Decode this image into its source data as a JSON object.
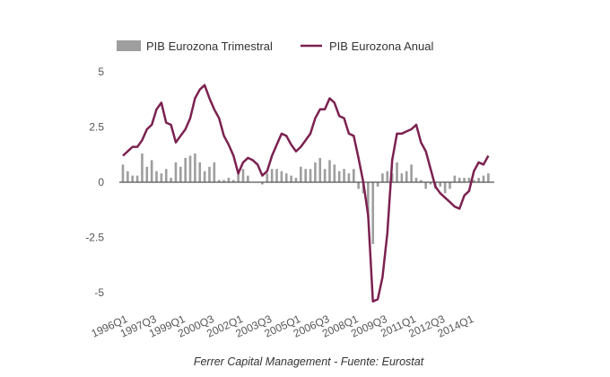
{
  "chart_data": {
    "type": "bar+line",
    "title": "",
    "xlabel": "",
    "ylabel": "",
    "ylim": [
      -5.5,
      5
    ],
    "yticks": [
      5,
      2.5,
      0,
      -2.5,
      -5
    ],
    "ytick_labels": [
      "5",
      "2.5",
      "0",
      "-2.5",
      "-5"
    ],
    "grid": false,
    "legend_position": "top",
    "x_start": "1996Q1",
    "x_end": "2015Q1",
    "xtick_labels": [
      "1996Q1",
      "1997Q3",
      "1999Q1",
      "2000Q3",
      "2002Q1",
      "2003Q3",
      "2005Q1",
      "2006Q3",
      "2008Q1",
      "2009Q3",
      "2011Q1",
      "2012Q3",
      "2014Q1"
    ],
    "xtick_every": 6,
    "categories": [
      "1996Q1",
      "1996Q2",
      "1996Q3",
      "1996Q4",
      "1997Q1",
      "1997Q2",
      "1997Q3",
      "1997Q4",
      "1998Q1",
      "1998Q2",
      "1998Q3",
      "1998Q4",
      "1999Q1",
      "1999Q2",
      "1999Q3",
      "1999Q4",
      "2000Q1",
      "2000Q2",
      "2000Q3",
      "2000Q4",
      "2001Q1",
      "2001Q2",
      "2001Q3",
      "2001Q4",
      "2002Q1",
      "2002Q2",
      "2002Q3",
      "2002Q4",
      "2003Q1",
      "2003Q2",
      "2003Q3",
      "2003Q4",
      "2004Q1",
      "2004Q2",
      "2004Q3",
      "2004Q4",
      "2005Q1",
      "2005Q2",
      "2005Q3",
      "2005Q4",
      "2006Q1",
      "2006Q2",
      "2006Q3",
      "2006Q4",
      "2007Q1",
      "2007Q2",
      "2007Q3",
      "2007Q4",
      "2008Q1",
      "2008Q2",
      "2008Q3",
      "2008Q4",
      "2009Q1",
      "2009Q2",
      "2009Q3",
      "2009Q4",
      "2010Q1",
      "2010Q2",
      "2010Q3",
      "2010Q4",
      "2011Q1",
      "2011Q2",
      "2011Q3",
      "2011Q4",
      "2012Q1",
      "2012Q2",
      "2012Q3",
      "2012Q4",
      "2013Q1",
      "2013Q2",
      "2013Q3",
      "2013Q4",
      "2014Q1",
      "2014Q2",
      "2014Q3",
      "2014Q4",
      "2015Q1"
    ],
    "series": [
      {
        "name": "PIB Eurozona Trimestral",
        "type": "bar",
        "color": "#9e9e9e",
        "values": [
          0.8,
          0.5,
          0.3,
          0.3,
          1.3,
          0.7,
          1.0,
          0.5,
          0.4,
          0.6,
          0.2,
          0.9,
          0.7,
          1.1,
          1.2,
          1.3,
          0.9,
          0.5,
          0.7,
          0.9,
          0.1,
          0.1,
          0.2,
          0.1,
          0.4,
          0.6,
          0.3,
          0.0,
          0.0,
          -0.1,
          0.4,
          0.6,
          0.6,
          0.5,
          0.4,
          0.3,
          0.2,
          0.7,
          0.6,
          0.6,
          0.9,
          1.1,
          0.6,
          1.0,
          0.8,
          0.5,
          0.6,
          0.4,
          0.6,
          -0.3,
          -0.5,
          -1.6,
          -2.8,
          -0.2,
          0.4,
          0.5,
          0.4,
          0.9,
          0.4,
          0.5,
          0.8,
          0.2,
          0.1,
          -0.3,
          -0.1,
          -0.3,
          -0.2,
          -0.5,
          -0.3,
          0.3,
          0.2,
          0.2,
          0.2,
          0.1,
          0.2,
          0.3,
          0.4
        ]
      },
      {
        "name": "PIB Eurozona Anual",
        "type": "line",
        "color": "#7b2150",
        "values": [
          1.2,
          1.4,
          1.6,
          1.6,
          1.9,
          2.4,
          2.6,
          3.3,
          3.6,
          2.7,
          2.6,
          1.8,
          2.1,
          2.4,
          2.9,
          3.8,
          4.2,
          4.4,
          3.8,
          3.3,
          2.9,
          2.1,
          1.7,
          1.2,
          0.4,
          0.9,
          1.1,
          1.0,
          0.8,
          0.3,
          0.5,
          1.2,
          1.7,
          2.2,
          2.1,
          1.7,
          1.4,
          1.6,
          1.9,
          2.2,
          2.9,
          3.3,
          3.3,
          3.8,
          3.6,
          3.0,
          2.9,
          2.2,
          2.1,
          1.1,
          0.0,
          -1.5,
          -5.4,
          -5.3,
          -4.3,
          -2.3,
          1.0,
          2.2,
          2.2,
          2.3,
          2.4,
          2.6,
          1.8,
          1.4,
          0.6,
          -0.2,
          -0.5,
          -0.7,
          -0.9,
          -1.1,
          -1.2,
          -0.6,
          -0.4,
          0.5,
          0.9,
          0.8,
          1.2
        ]
      }
    ],
    "footer": "Ferrer Capital Management - Fuente: Eurostat"
  }
}
